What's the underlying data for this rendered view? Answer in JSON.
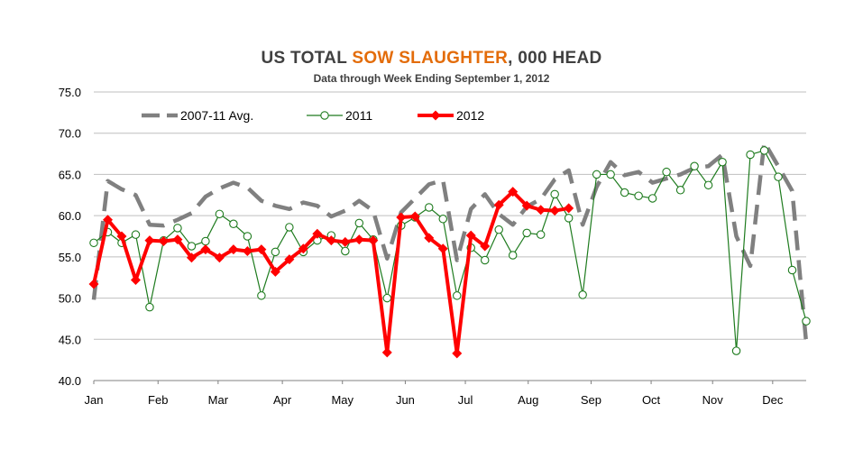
{
  "title": {
    "part1": "US TOTAL ",
    "highlight": "SOW SLAUGHTER",
    "part2": ",  000 HEAD"
  },
  "subtitle": "Data through Week Ending September 1, 2012",
  "colors": {
    "avg": "#808080",
    "y2011": "#1e7b1e",
    "y2012": "#ff0000",
    "grid": "#bfbfbf",
    "highlight": "#e36c0a"
  },
  "chart_data": {
    "type": "line",
    "title": "US TOTAL SOW SLAUGHTER, 000 HEAD",
    "subtitle": "Data through Week Ending September 1, 2012",
    "ylim": [
      40,
      75
    ],
    "yticks": [
      "40.0",
      "45.0",
      "50.0",
      "55.0",
      "60.0",
      "65.0",
      "70.0",
      "75.0"
    ],
    "xlim": [
      1,
      52
    ],
    "xticks": [
      {
        "label": "Jan",
        "week": 1
      },
      {
        "label": "Feb",
        "week": 5.6
      },
      {
        "label": "Mar",
        "week": 9.9
      },
      {
        "label": "Apr",
        "week": 14.5
      },
      {
        "label": "May",
        "week": 18.8
      },
      {
        "label": "Jun",
        "week": 23.3
      },
      {
        "label": "Jul",
        "week": 27.6
      },
      {
        "label": "Aug",
        "week": 32.1
      },
      {
        "label": "Sep",
        "week": 36.6
      },
      {
        "label": "Oct",
        "week": 40.9
      },
      {
        "label": "Nov",
        "week": 45.3
      },
      {
        "label": "Dec",
        "week": 49.6
      }
    ],
    "grid": true,
    "legend_position": "top-left",
    "series": [
      {
        "name": "2007-11 Avg.",
        "style": "dashed",
        "x": [
          1,
          2,
          3,
          4,
          5,
          6,
          7,
          8,
          9,
          10,
          11,
          12,
          13,
          14,
          15,
          16,
          17,
          18,
          19,
          20,
          21,
          22,
          23,
          24,
          25,
          26,
          27,
          28,
          29,
          30,
          31,
          32,
          33,
          34,
          35,
          36,
          37,
          38,
          39,
          40,
          41,
          42,
          43,
          44,
          45,
          46,
          47,
          48,
          49,
          50,
          51,
          52
        ],
        "values": [
          49.8,
          64.2,
          63.2,
          62.5,
          58.9,
          58.8,
          59.5,
          60.3,
          62.3,
          63.3,
          64.0,
          63.4,
          61.8,
          61.2,
          60.8,
          61.6,
          61.2,
          59.9,
          60.6,
          61.8,
          60.6,
          54.8,
          60.4,
          62.1,
          63.8,
          64.3,
          54.6,
          60.8,
          62.6,
          60.2,
          58.9,
          61.1,
          62.0,
          64.4,
          65.5,
          58.9,
          63.5,
          66.5,
          64.9,
          65.3,
          64.0,
          64.5,
          65.0,
          65.8,
          66.0,
          67.4,
          57.5,
          53.9,
          68.9,
          66.0,
          63.0,
          44.6
        ]
      },
      {
        "name": "2011",
        "style": "solid-open-circle",
        "x": [
          1,
          2,
          3,
          4,
          5,
          6,
          7,
          8,
          9,
          10,
          11,
          12,
          13,
          14,
          15,
          16,
          17,
          18,
          19,
          20,
          21,
          22,
          23,
          24,
          25,
          26,
          27,
          28,
          29,
          30,
          31,
          32,
          33,
          34,
          35,
          36,
          37,
          38,
          39,
          40,
          41,
          42,
          43,
          44,
          45,
          46,
          47,
          48,
          49,
          50,
          51,
          52
        ],
        "values": [
          56.7,
          58.0,
          56.7,
          57.7,
          48.9,
          57.0,
          58.5,
          56.3,
          56.9,
          60.2,
          59.0,
          57.5,
          50.3,
          55.6,
          58.6,
          55.6,
          57.0,
          57.6,
          55.7,
          59.1,
          57.1,
          50.0,
          58.8,
          59.8,
          61.0,
          59.6,
          50.3,
          56.1,
          54.6,
          58.3,
          55.2,
          57.9,
          57.7,
          62.6,
          59.7,
          50.4,
          65.0,
          65.0,
          62.8,
          62.4,
          62.1,
          65.3,
          63.1,
          66.0,
          63.7,
          66.5,
          43.6,
          67.4,
          67.9,
          64.7,
          53.4,
          47.2
        ]
      },
      {
        "name": "2012",
        "style": "thick-diamond",
        "x": [
          1,
          2,
          3,
          4,
          5,
          6,
          7,
          8,
          9,
          10,
          11,
          12,
          13,
          14,
          15,
          16,
          17,
          18,
          19,
          20,
          21,
          22,
          23,
          24,
          25,
          26,
          27,
          28,
          29,
          30,
          31,
          32,
          33,
          34,
          35
        ],
        "values": [
          51.7,
          59.5,
          57.5,
          52.2,
          57.0,
          56.9,
          57.1,
          54.9,
          55.9,
          54.9,
          55.9,
          55.7,
          55.9,
          53.2,
          54.7,
          56.0,
          57.8,
          57.0,
          56.8,
          57.1,
          57.0,
          43.4,
          59.8,
          59.9,
          57.3,
          56.0,
          43.3,
          57.6,
          56.3,
          61.3,
          62.9,
          61.2,
          60.7,
          60.6,
          60.9
        ]
      }
    ]
  }
}
